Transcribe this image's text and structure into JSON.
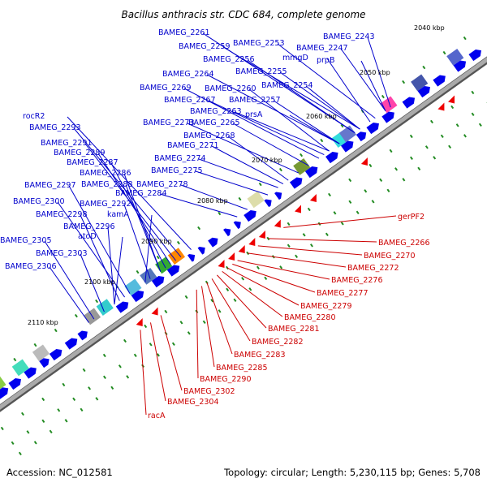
{
  "title": "Bacillus anthracis str. CDC 684, complete genome",
  "footer": {
    "accession": "Accession: NC_012581",
    "stats": "Topology: circular; Length: 5,230,115 bp; Genes: 5,708"
  },
  "colors": {
    "forward_gene": "#0000ee",
    "reverse_gene": "#ee0000",
    "label_forward": "#0000cc",
    "label_reverse": "#cc0000",
    "backbone": "#9a9a9a",
    "tick": "#228b22"
  },
  "scale_labels": [
    "2040 kbp",
    "2050 kbp",
    "2060 kbp",
    "2070 kbp",
    "2080 kbp",
    "2090 kbp",
    "2100 kbp",
    "2110 kbp"
  ],
  "forward_labels": [
    "BAMEG_2243",
    "BAMEG_2261",
    "BAMEG_2253",
    "BAMEG_2247",
    "BAMEG_2259",
    "mmgD",
    "BAMEG_2256",
    "prpB",
    "BAMEG_2255",
    "BAMEG_2264",
    "BAMEG_2254",
    "BAMEG_2269",
    "BAMEG_2260",
    "BAMEG_2267",
    "BAMEG_2257",
    "BAMEG_2263",
    "prsA",
    "rocR2",
    "BAMEG_2273",
    "BAMEG_2265",
    "BAMEG_2293",
    "BAMEG_2268",
    "BAMEG_2291",
    "BAMEG_2271",
    "BAMEG_2289",
    "BAMEG_2274",
    "BAMEG_2287",
    "BAMEG_2275",
    "BAMEG_2286",
    "BAMEG_2297",
    "BAMEG_2288",
    "BAMEG_2278",
    "BAMEG_2284",
    "BAMEG_2300",
    "BAMEG_2292",
    "BAMEG_2298",
    "kamA",
    "BAMEG_2296",
    "atoD",
    "BAMEG_2305",
    "BAMEG_2303",
    "BAMEG_2306"
  ],
  "reverse_labels": [
    "gerPF2",
    "BAMEG_2266",
    "BAMEG_2270",
    "BAMEG_2272",
    "BAMEG_2276",
    "BAMEG_2277",
    "BAMEG_2279",
    "BAMEG_2280",
    "BAMEG_2281",
    "BAMEG_2282",
    "BAMEG_2283",
    "BAMEG_2285",
    "BAMEG_2290",
    "BAMEG_2302",
    "BAMEG_2304",
    "racA"
  ]
}
